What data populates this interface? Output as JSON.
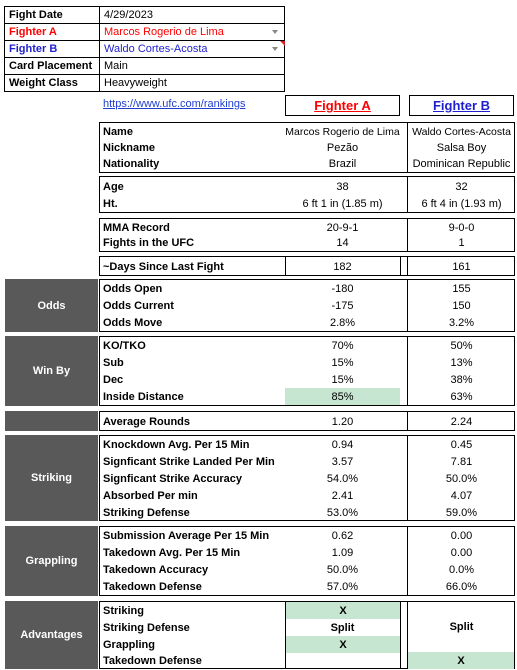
{
  "info": {
    "fight_date_label": "Fight Date",
    "fight_date": "4/29/2023",
    "fighter_a_label": "Fighter A",
    "fighter_a": "Marcos Rogerio de Lima",
    "fighter_b_label": "Fighter B",
    "fighter_b": "Waldo Cortes-Acosta",
    "placement_label": "Card Placement",
    "placement": "Main",
    "weight_label": "Weight Class",
    "weight": "Heavyweight"
  },
  "link": "https://www.ufc.com/rankings",
  "headers": {
    "a": "Fighter A",
    "b": "Fighter B"
  },
  "colors": {
    "fighter_a": "#ff0000",
    "fighter_b": "#1f1fd0",
    "section": "#595959",
    "highlight": "#c6e6d2"
  },
  "profile": [
    {
      "label": "Name",
      "a": "Marcos Rogerio de Lima",
      "b": "Waldo Cortes-Acosta"
    },
    {
      "label": "Nickname",
      "a": "Pezão",
      "b": "Salsa Boy"
    },
    {
      "label": "Nationality",
      "a": "Brazil",
      "b": "Dominican Republic"
    }
  ],
  "physical": [
    {
      "label": "Age",
      "a": "38",
      "b": "32"
    },
    {
      "label": "Ht.",
      "a": "6 ft 1 in (1.85 m)",
      "b": "6 ft 4 in (1.93 m)"
    }
  ],
  "record": [
    {
      "label": "MMA Record",
      "a": "20-9-1",
      "b": "9-0-0"
    },
    {
      "label": "Fights in the UFC",
      "a": "14",
      "b": "1"
    }
  ],
  "days": {
    "label": "~Days Since Last Fight",
    "a": "182",
    "b": "161"
  },
  "odds": {
    "section": "Odds",
    "rows": [
      {
        "label": "Odds Open",
        "a": "-180",
        "b": "155"
      },
      {
        "label": "Odds Current",
        "a": "-175",
        "b": "150"
      },
      {
        "label": "Odds Move",
        "a": "2.8%",
        "b": "3.2%"
      }
    ]
  },
  "winby": {
    "section": "Win By",
    "rows": [
      {
        "label": "KO/TKO",
        "a": "70%",
        "b": "50%"
      },
      {
        "label": "Sub",
        "a": "15%",
        "b": "13%"
      },
      {
        "label": "Dec",
        "a": "15%",
        "b": "38%"
      },
      {
        "label": "Inside Distance",
        "a": "85%",
        "b": "63%"
      }
    ]
  },
  "rounds": {
    "label": "Average Rounds",
    "a": "1.20",
    "b": "2.24"
  },
  "striking": {
    "section": "Striking",
    "rows": [
      {
        "label": "Knockdown Avg. Per 15 Min",
        "a": "0.94",
        "b": "0.45"
      },
      {
        "label": "Signficant Strike Landed Per Min",
        "a": "3.57",
        "b": "7.81"
      },
      {
        "label": "Signficant Strike Accuracy",
        "a": "54.0%",
        "b": "50.0%"
      },
      {
        "label": "Absorbed Per min",
        "a": "2.41",
        "b": "4.07"
      },
      {
        "label": "Striking Defense",
        "a": "53.0%",
        "b": "59.0%"
      }
    ]
  },
  "grappling": {
    "section": "Grappling",
    "rows": [
      {
        "label": "Submission Average  Per 15 Min",
        "a": "0.62",
        "b": "0.00"
      },
      {
        "label": "Takedown Avg. Per 15 Min",
        "a": "1.09",
        "b": "0.00"
      },
      {
        "label": "Takedown Accuracy",
        "a": "50.0%",
        "b": "0.0%"
      },
      {
        "label": "Takedown Defense",
        "a": "57.0%",
        "b": "66.0%"
      }
    ]
  },
  "advantages": {
    "section": "Advantages",
    "rows": [
      {
        "label": "Striking",
        "a": "X",
        "b": ""
      },
      {
        "label": "Striking Defense",
        "a": "Split",
        "b": "Split"
      },
      {
        "label": "Grappling",
        "a": "X",
        "b": ""
      },
      {
        "label": "Takedown Defense",
        "a": "",
        "b": "X"
      }
    ]
  }
}
